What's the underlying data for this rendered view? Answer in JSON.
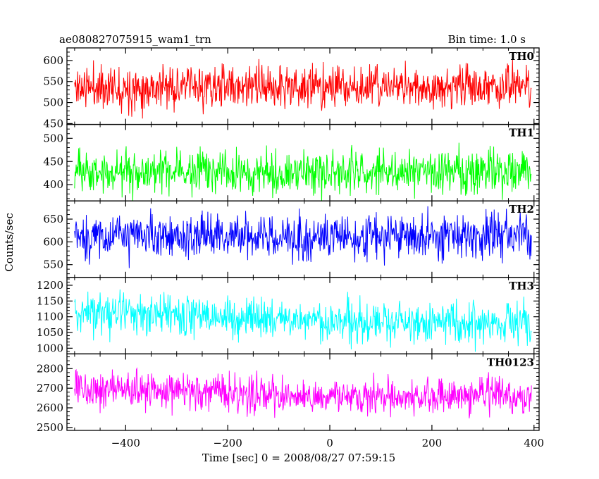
{
  "figure": {
    "title_left": "ae080827075915_wam1_trn",
    "title_right": "Bin time: 1.0 s",
    "xlabel": "Time [sec] 0 = 2008/08/27 07:59:15",
    "ylabel": "Counts/sec"
  },
  "chart_data": {
    "type": "line",
    "x_axis": {
      "range": [
        -515,
        410
      ],
      "ticks": [
        -400,
        -200,
        0,
        200,
        400
      ],
      "tick_labels": [
        "−400",
        "−200",
        "0",
        "200",
        "400"
      ],
      "bin_time_s": 1.0,
      "data_start": -500,
      "data_end": 395
    },
    "panels": [
      {
        "name": "TH0",
        "color": "#ff0000",
        "ylim": [
          448,
          630
        ],
        "yticks": [
          450,
          500,
          550,
          600
        ],
        "mean": 537,
        "spread": 42,
        "trend": [
          0,
          0,
          0
        ],
        "seed": 11
      },
      {
        "name": "TH1",
        "color": "#00ff00",
        "ylim": [
          365,
          530
        ],
        "yticks": [
          400,
          450,
          500
        ],
        "mean": 428,
        "spread": 38,
        "trend": [
          0,
          0,
          0
        ],
        "seed": 23
      },
      {
        "name": "TH2",
        "color": "#0000ff",
        "ylim": [
          522,
          690
        ],
        "yticks": [
          550,
          600,
          650
        ],
        "mean": 612,
        "spread": 40,
        "trend": [
          0,
          0,
          0
        ],
        "seed": 37
      },
      {
        "name": "TH3",
        "color": "#00ffff",
        "ylim": [
          982,
          1225
        ],
        "yticks": [
          1000,
          1050,
          1100,
          1150,
          1200
        ],
        "mean": 1090,
        "spread": 55,
        "trend": [
          25,
          0,
          -12
        ],
        "seed": 41
      },
      {
        "name": "TH0123",
        "color": "#ff00ff",
        "ylim": [
          2485,
          2875
        ],
        "yticks": [
          2500,
          2600,
          2700,
          2800
        ],
        "mean": 2660,
        "spread": 75,
        "trend": [
          45,
          0,
          -10
        ],
        "seed": 53
      }
    ]
  }
}
